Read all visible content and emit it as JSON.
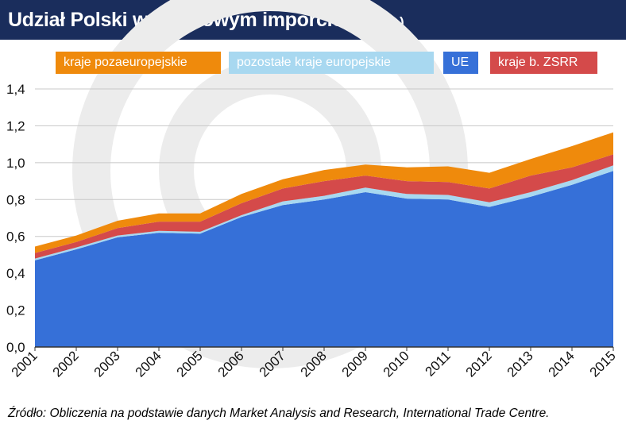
{
  "header": {
    "title": "Udział Polski w światowym imporcie",
    "subtitle": "(w proc.)"
  },
  "source": "Źródło: Obliczenia na podstawie danych Market Analysis and Research, International Trade Centre.",
  "colors": {
    "header_bg": "#1a2d5c",
    "ue": "#3670d8",
    "europe_other": "#a8d8f0",
    "ussr": "#d44a4a",
    "non_europe": "#ef8a0c",
    "watermark": "#ececec"
  },
  "chart_data": {
    "type": "area",
    "stacked": true,
    "categories": [
      "2001",
      "2002",
      "2003",
      "2004",
      "2005",
      "2006",
      "2007",
      "2008",
      "2009",
      "2010",
      "2011",
      "2012",
      "2013",
      "2014",
      "2015"
    ],
    "ylim": [
      0,
      1.4
    ],
    "yticks": [
      "0,0",
      "0,2",
      "0,4",
      "0,6",
      "0,8",
      "1,0",
      "1,2",
      "1,4"
    ],
    "grid": true,
    "legend_position": "top",
    "series": [
      {
        "name": "UE",
        "color": "#3670d8",
        "values": [
          0.47,
          0.53,
          0.595,
          0.62,
          0.615,
          0.705,
          0.77,
          0.8,
          0.84,
          0.805,
          0.8,
          0.76,
          0.815,
          0.88,
          0.955
        ]
      },
      {
        "name": "pozostałe kraje europejskie",
        "color": "#a8d8f0",
        "values": [
          0.01,
          0.01,
          0.01,
          0.01,
          0.01,
          0.01,
          0.02,
          0.02,
          0.025,
          0.025,
          0.025,
          0.025,
          0.025,
          0.025,
          0.03
        ]
      },
      {
        "name": "kraje b. ZSRR",
        "color": "#d44a4a",
        "values": [
          0.03,
          0.03,
          0.04,
          0.05,
          0.055,
          0.065,
          0.07,
          0.08,
          0.065,
          0.07,
          0.07,
          0.075,
          0.09,
          0.07,
          0.06
        ]
      },
      {
        "name": "kraje pozaeuropejskie",
        "color": "#ef8a0c",
        "values": [
          0.035,
          0.035,
          0.04,
          0.045,
          0.045,
          0.05,
          0.05,
          0.06,
          0.06,
          0.075,
          0.085,
          0.085,
          0.09,
          0.115,
          0.12
        ]
      }
    ]
  },
  "legend": [
    {
      "label": "kraje pozaeuropejskie",
      "color": "#ef8a0c"
    },
    {
      "label": "pozostałe kraje europejskie",
      "color": "#a8d8f0"
    },
    {
      "label": "UE",
      "color": "#3670d8"
    },
    {
      "label": "kraje b. ZSRR",
      "color": "#d44a4a"
    }
  ]
}
